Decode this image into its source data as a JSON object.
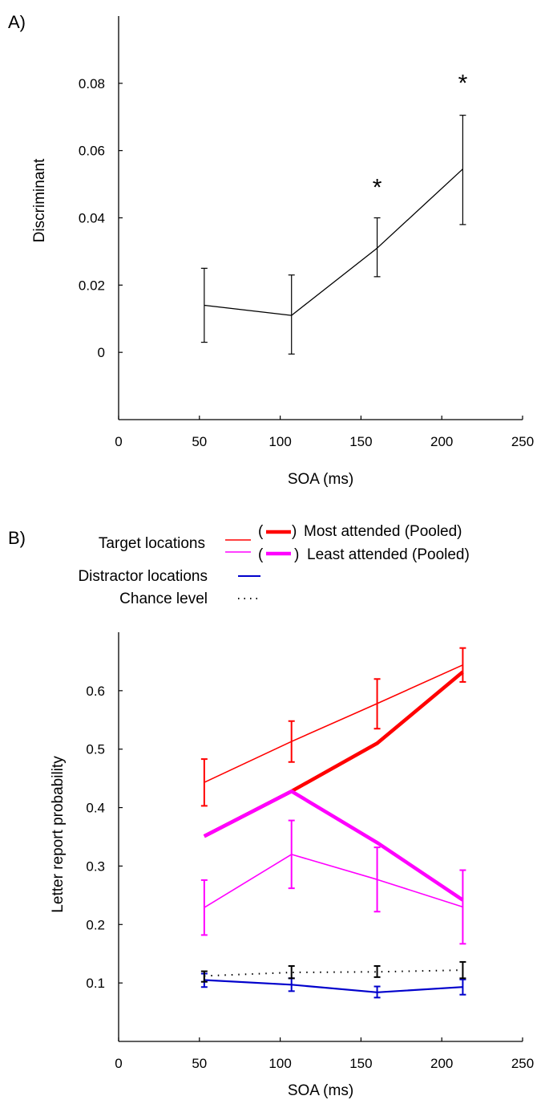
{
  "figure": {
    "panel_a_label": "A)",
    "panel_b_label": "B)"
  },
  "legend": {
    "target_label": "Target locations",
    "distractor_label": "Distractor locations",
    "chance_label": "Chance level",
    "most_attended": "Most attended (Pooled)",
    "least_attended": "Least attended (Pooled)",
    "open_paren": "(",
    "close_paren": ")"
  },
  "chart_data": [
    {
      "type": "line",
      "panel": "A)",
      "xlabel": "SOA (ms)",
      "ylabel": "Discriminant",
      "xlim": [
        0,
        250
      ],
      "ylim": [
        -0.02,
        0.1
      ],
      "xticks": [
        0,
        50,
        100,
        150,
        200,
        250
      ],
      "yticks": [
        0,
        0.02,
        0.04,
        0.06,
        0.08
      ],
      "ytick_labels": [
        "0",
        "0.02",
        "0.04",
        "0.06",
        "0.08"
      ],
      "series": [
        {
          "color": "#000000",
          "x": [
            53,
            107,
            160,
            213
          ],
          "y": [
            0.014,
            0.011,
            0.031,
            0.0545
          ],
          "err_low": [
            0.003,
            -0.0005,
            0.0225,
            0.038
          ],
          "err_high": [
            0.025,
            0.023,
            0.04,
            0.0705
          ]
        }
      ],
      "annotations": [
        {
          "text": "*",
          "x": 160,
          "y": 0.05
        },
        {
          "text": "*",
          "x": 213,
          "y": 0.081
        }
      ]
    },
    {
      "type": "line",
      "panel": "B)",
      "xlabel": "SOA (ms)",
      "ylabel": "Letter report probability",
      "xlim": [
        0,
        250
      ],
      "ylim": [
        0,
        0.7
      ],
      "xticks": [
        0,
        50,
        100,
        150,
        200,
        250
      ],
      "yticks": [
        0.1,
        0.2,
        0.3,
        0.4,
        0.5,
        0.6
      ],
      "ytick_labels": [
        "0.1",
        "0.2",
        "0.3",
        "0.4",
        "0.5",
        "0.6"
      ],
      "series": [
        {
          "color": "#ff0000",
          "style": "thin",
          "x": [
            53,
            107,
            160,
            213
          ],
          "y": [
            0.443,
            0.513,
            0.578,
            0.644
          ],
          "err_low": [
            0.403,
            0.478,
            0.535,
            0.615
          ],
          "err_high": [
            0.483,
            0.548,
            0.62,
            0.673
          ]
        },
        {
          "color": "#ff00ff",
          "style": "thin",
          "x": [
            53,
            107,
            160,
            213
          ],
          "y": [
            0.229,
            0.32,
            0.277,
            0.23
          ],
          "err_low": [
            0.182,
            0.262,
            0.222,
            0.167
          ],
          "err_high": [
            0.276,
            0.378,
            0.332,
            0.293
          ]
        },
        {
          "color": "#ff0000",
          "style": "thick",
          "x": [
            53,
            107,
            160,
            213
          ],
          "y": [
            0.351,
            0.428,
            0.51,
            0.632
          ]
        },
        {
          "color": "#ff00ff",
          "style": "thick",
          "x": [
            53,
            107,
            160,
            213
          ],
          "y": [
            0.351,
            0.428,
            0.34,
            0.242
          ]
        },
        {
          "color": "#0000cc",
          "style": "thin",
          "x": [
            53,
            107,
            160,
            213
          ],
          "y": [
            0.105,
            0.097,
            0.084,
            0.093
          ],
          "err_low": [
            0.093,
            0.086,
            0.075,
            0.08
          ],
          "err_high": [
            0.116,
            0.108,
            0.094,
            0.106
          ]
        },
        {
          "color": "#000000",
          "style": "dotted",
          "x": [
            53,
            107,
            160,
            213
          ],
          "y": [
            0.112,
            0.118,
            0.119,
            0.122
          ],
          "err_low": [
            0.102,
            0.108,
            0.11,
            0.108
          ],
          "err_high": [
            0.12,
            0.129,
            0.129,
            0.136
          ]
        }
      ]
    }
  ]
}
